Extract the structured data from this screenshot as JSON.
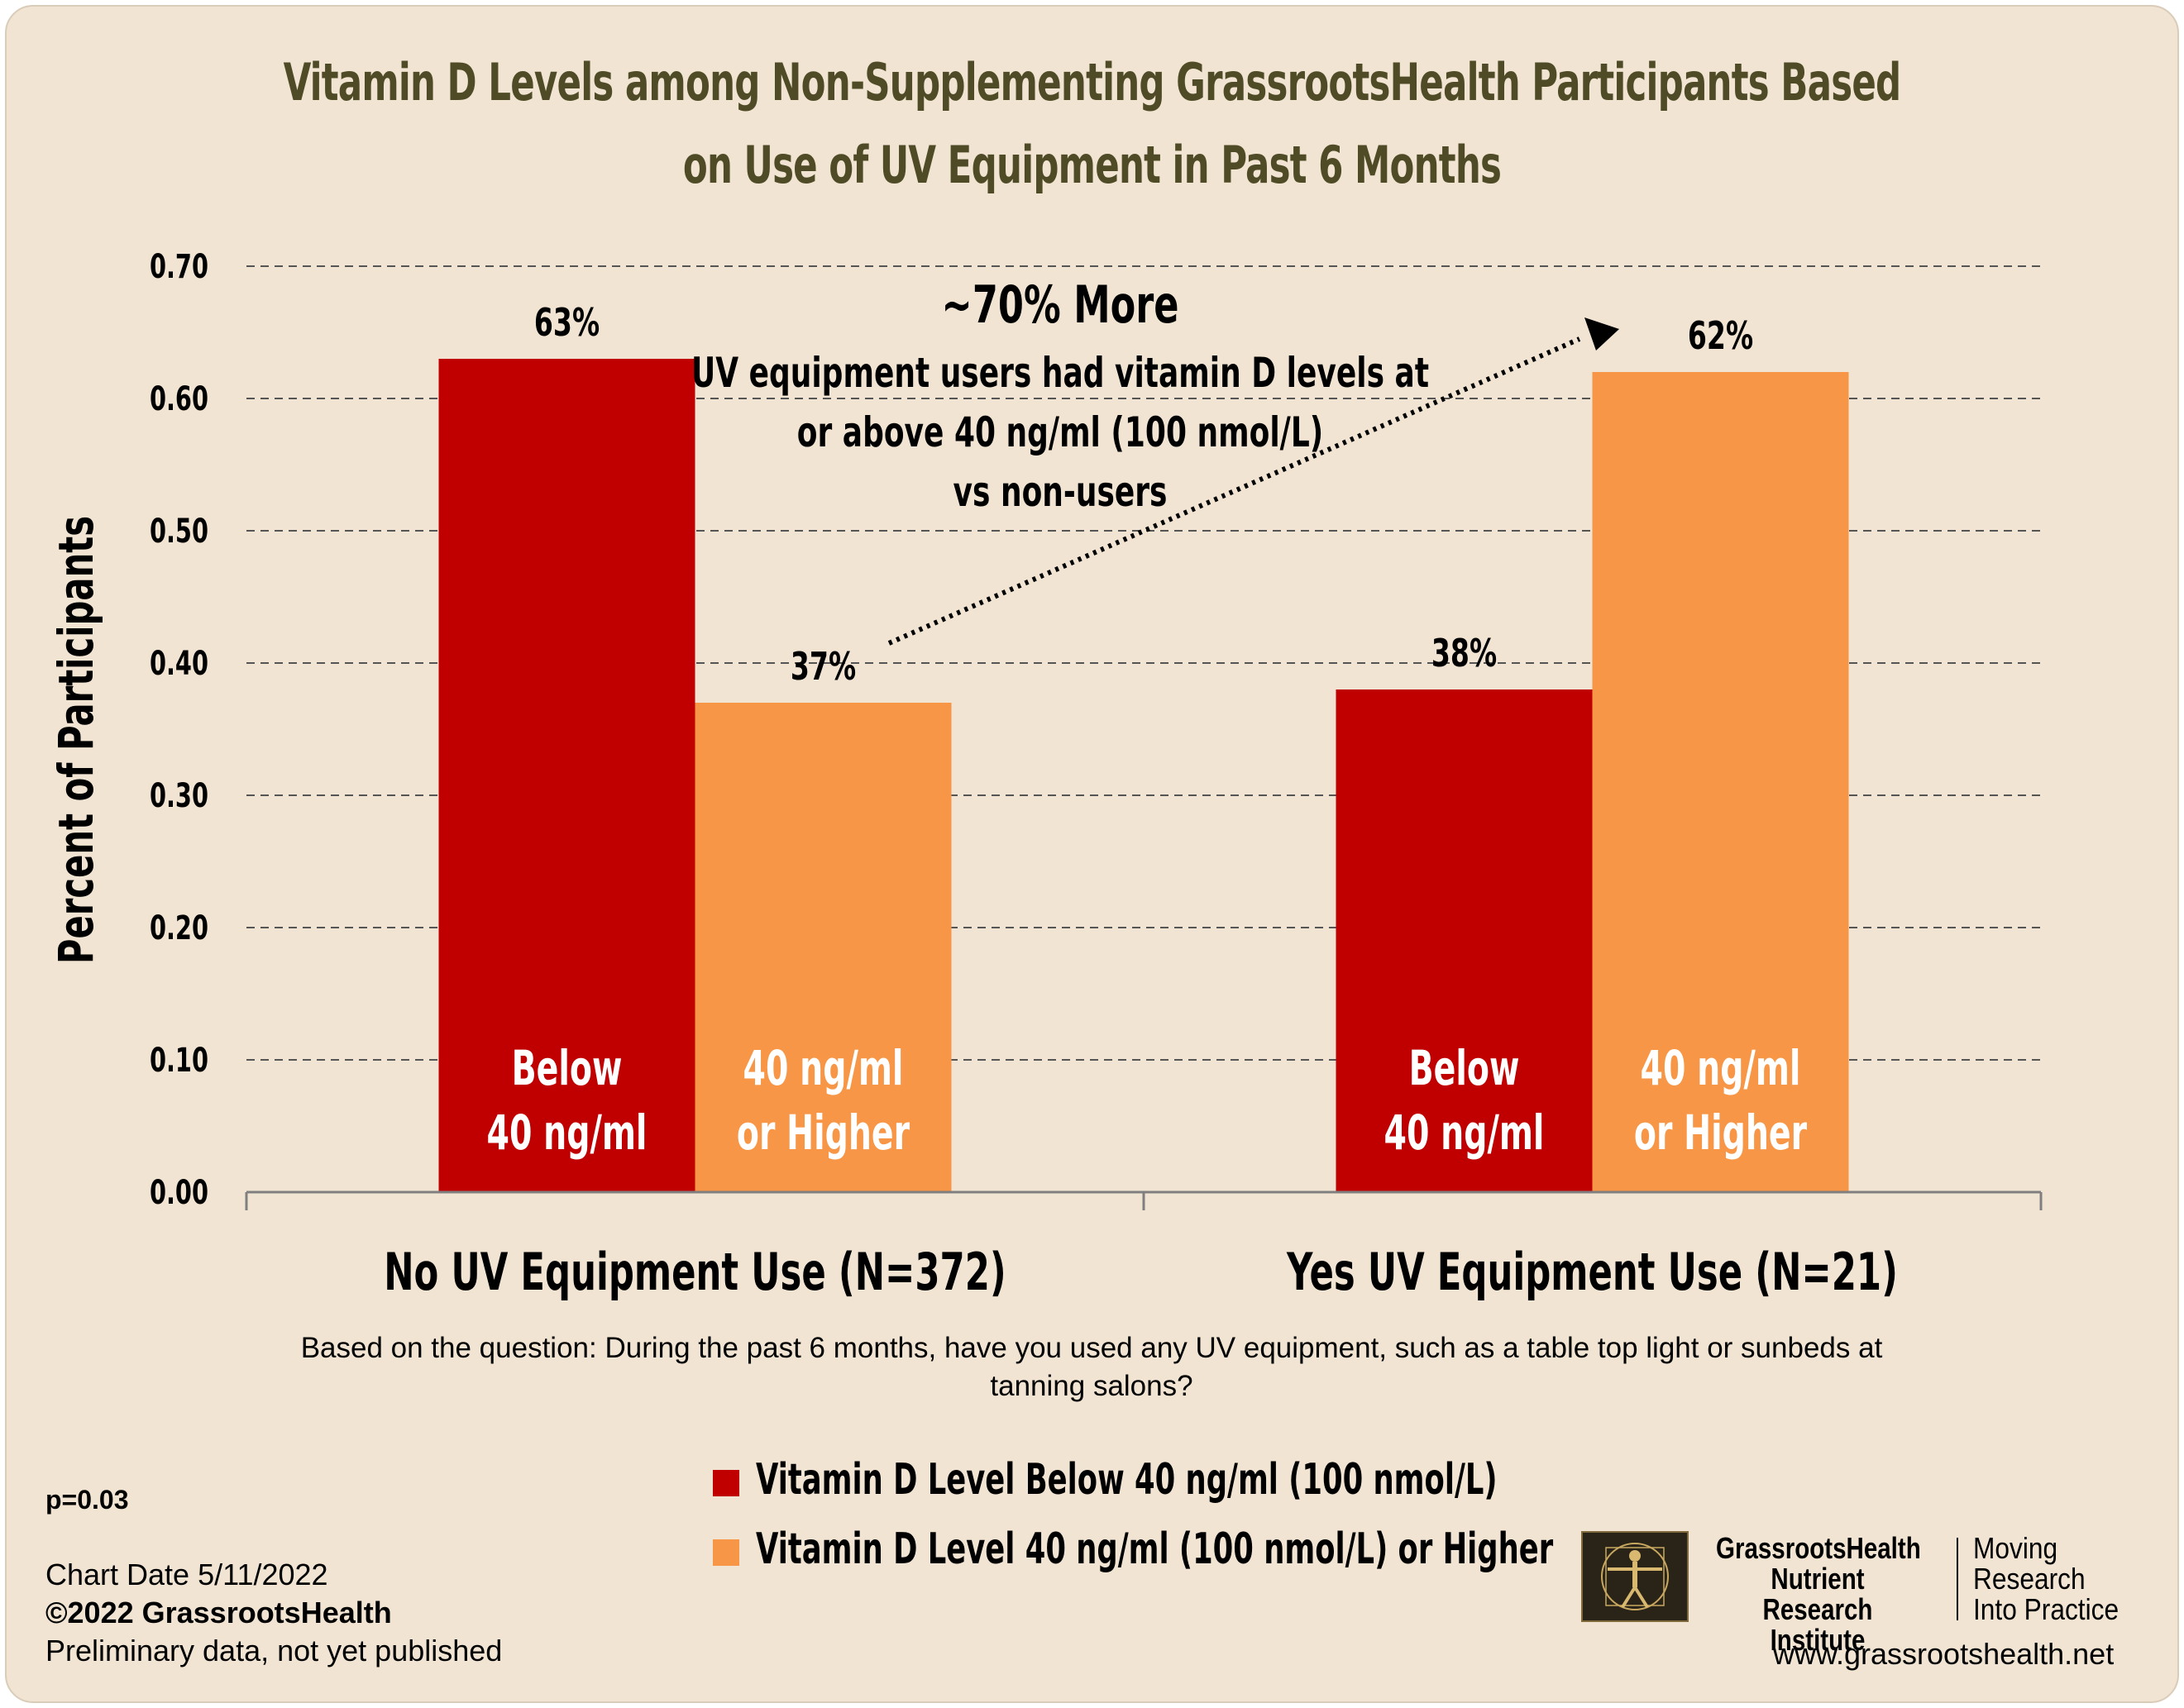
{
  "title_lines": [
    "Vitamin D Levels among Non-Supplementing GrassrootsHealth Participants Based",
    "on Use of UV Equipment in Past 6 Months"
  ],
  "chart_data": {
    "type": "bar",
    "categories": [
      "No UV Equipment Use (N=372)",
      "Yes UV Equipment Use (N=21)"
    ],
    "series": [
      {
        "name": "Vitamin D Level Below 40 ng/ml (100 nmol/L)",
        "values": [
          0.63,
          0.38
        ],
        "data_labels": [
          "63%",
          "38%"
        ],
        "bar_labels": [
          "Below",
          "40 ng/ml"
        ],
        "color": "#C00000"
      },
      {
        "name": "Vitamin D Level 40 ng/ml (100 nmol/L) or Higher",
        "values": [
          0.37,
          0.62
        ],
        "data_labels": [
          "37%",
          "62%"
        ],
        "bar_labels": [
          "40 ng/ml",
          "or Higher"
        ],
        "color": "#F79646"
      }
    ],
    "ylabel": "Percent of Participants",
    "xlabel": "",
    "ylim": [
      0,
      0.7
    ],
    "yticks": [
      "0.00",
      "0.10",
      "0.20",
      "0.30",
      "0.40",
      "0.50",
      "0.60",
      "0.70"
    ],
    "grid": "dashed horizontal",
    "legend": "bottom-center",
    "annotation": {
      "headline": "~70% More",
      "lines": [
        "UV equipment users had vitamin D levels at",
        "or above 40 ng/ml (100 nmol/L)",
        "vs  non-users"
      ]
    }
  },
  "note_lines": [
    "Based on the question: During the past 6 months, have you used any UV equipment, such as a table top light or sunbeds at",
    "tanning salons?"
  ],
  "p_value": "p=0.03",
  "footer": {
    "chart_date": "Chart Date 5/11/2022",
    "copyright": "©2022 GrassrootsHealth",
    "preliminary": "Preliminary data, not yet published"
  },
  "logo": {
    "name_lines": [
      "GrassrootsHealth",
      "Nutrient",
      "Research Institute"
    ],
    "tagline_lines": [
      "Moving",
      "Research",
      "Into Practice"
    ]
  },
  "website": "www.grassrootshealth.net",
  "colors": {
    "background": "#F1E4D2",
    "title": "#4F4B26",
    "series_below": "#C00000",
    "series_above": "#F79646"
  }
}
